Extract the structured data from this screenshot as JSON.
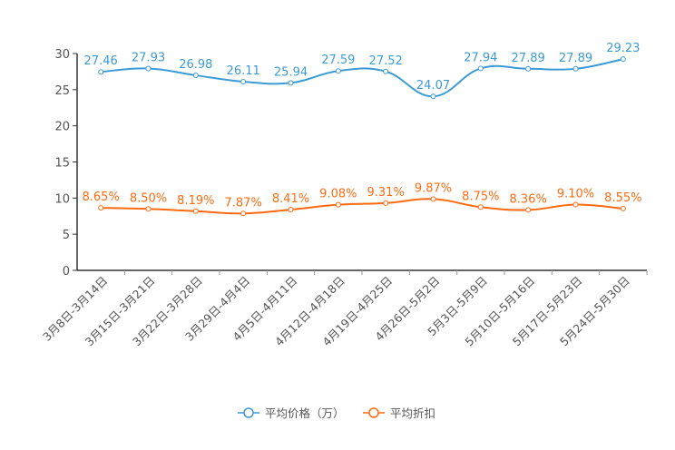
{
  "chart_data": {
    "type": "line",
    "title": "",
    "xlabel": "",
    "ylabel": "",
    "ylim": [
      0,
      30
    ],
    "yticks": [
      0,
      5,
      10,
      15,
      20,
      25,
      30
    ],
    "grid": false,
    "legend_position": "bottom",
    "categories": [
      "3月8日-3月14日",
      "3月15日-3月21日",
      "3月22日-3月28日",
      "3月29日-4月4日",
      "4月5日-4月11日",
      "4月12日-4月18日",
      "4月19日-4月25日",
      "4月26日-5月2日",
      "5月3日-5月9日",
      "5月10日-5月16日",
      "5月17日-5月23日",
      "5月24日-5月30日"
    ],
    "series": [
      {
        "name": "平均价格（万）",
        "color": "#3b9bd4",
        "label_suffix": "",
        "values": [
          27.46,
          27.93,
          26.98,
          26.11,
          25.94,
          27.59,
          27.52,
          24.07,
          27.94,
          27.89,
          27.89,
          29.23
        ]
      },
      {
        "name": "平均折扣",
        "color": "#ff6a10",
        "label_suffix": "%",
        "values": [
          8.65,
          8.5,
          8.19,
          7.87,
          8.41,
          9.08,
          9.31,
          9.87,
          8.75,
          8.36,
          9.1,
          8.55
        ]
      }
    ]
  }
}
